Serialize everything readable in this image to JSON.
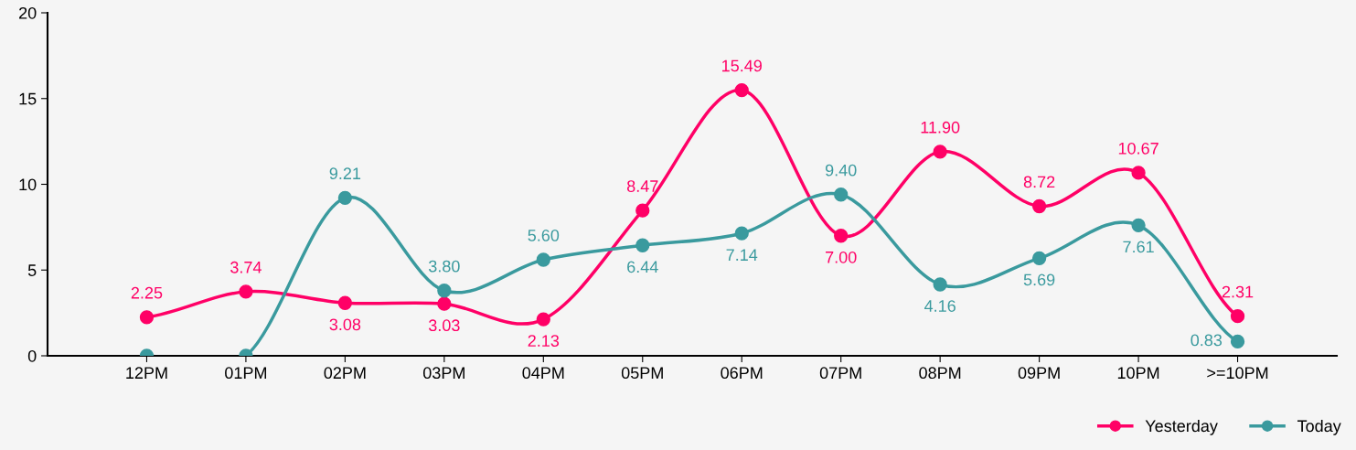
{
  "chart_data": {
    "type": "line",
    "categories": [
      "12PM",
      "01PM",
      "02PM",
      "03PM",
      "04PM",
      "05PM",
      "06PM",
      "07PM",
      "08PM",
      "09PM",
      "10PM",
      ">=10PM"
    ],
    "series": [
      {
        "name": "Yesterday",
        "color": "#ff0066",
        "values": [
          2.25,
          3.74,
          3.08,
          3.03,
          2.13,
          8.47,
          15.49,
          7.0,
          11.9,
          8.72,
          10.67,
          2.31
        ],
        "value_labels": [
          "2.25",
          "3.74",
          "3.08",
          "3.03",
          "2.13",
          "8.47",
          "15.49",
          "7.00",
          "11.90",
          "8.72",
          "10.67",
          "2.31"
        ]
      },
      {
        "name": "Today",
        "color": "#3a9a9e",
        "values": [
          0,
          0,
          9.21,
          3.8,
          5.6,
          6.44,
          7.14,
          9.4,
          4.16,
          5.69,
          7.61,
          0.83
        ],
        "value_labels": [
          null,
          null,
          "9.21",
          "3.80",
          "5.60",
          "6.44",
          "7.14",
          "9.40",
          "4.16",
          "5.69",
          "7.61",
          "0.83"
        ]
      }
    ],
    "ylim": [
      0,
      20
    ],
    "yticks": [
      0,
      5,
      10,
      15,
      20
    ],
    "grid": false,
    "legend": "bottom right",
    "marker": "circle",
    "line_style": "solid"
  }
}
